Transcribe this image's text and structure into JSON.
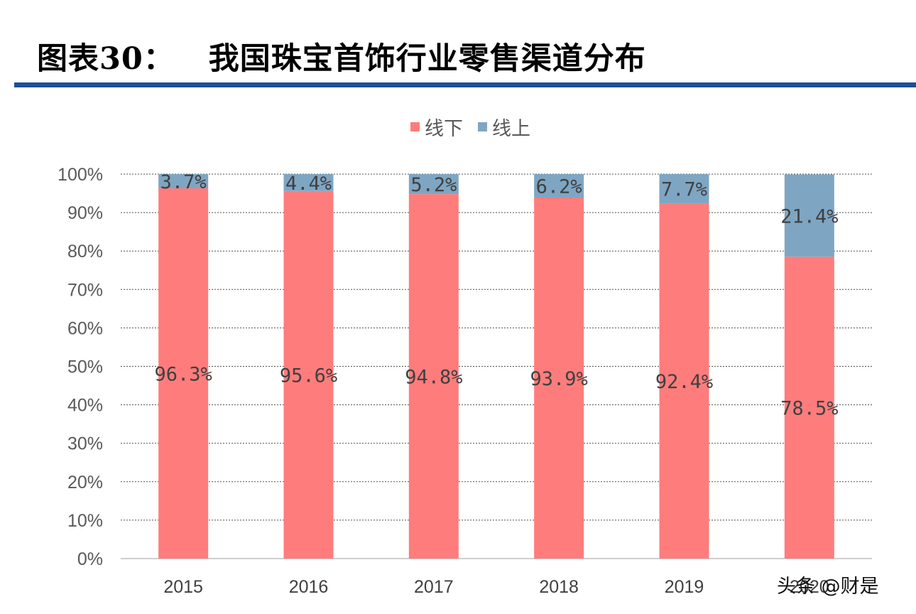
{
  "header": {
    "title": "图表30：   我国珠宝首饰行业零售渠道分布"
  },
  "watermark": "头条 @财是",
  "colors": {
    "offline": "#ff7c7c",
    "online": "#7ea6c3",
    "rule": "#1f4e95"
  },
  "chart_data": {
    "type": "bar",
    "stacked": true,
    "categories": [
      "2015",
      "2016",
      "2017",
      "2018",
      "2019",
      "2020"
    ],
    "series": [
      {
        "name": "线下",
        "values": [
          96.3,
          95.6,
          94.8,
          93.9,
          92.4,
          78.5
        ],
        "labels": [
          "96.3%",
          "95.6%",
          "94.8%",
          "93.9%",
          "92.4%",
          "78.5%"
        ]
      },
      {
        "name": "线上",
        "values": [
          3.7,
          4.4,
          5.2,
          6.2,
          7.7,
          21.4
        ],
        "labels": [
          "3.7%",
          "4.4%",
          "5.2%",
          "6.2%",
          "7.7%",
          "21.4%"
        ]
      }
    ],
    "y_ticks": [
      "0%",
      "10%",
      "20%",
      "30%",
      "40%",
      "50%",
      "60%",
      "70%",
      "80%",
      "90%",
      "100%"
    ],
    "ylim": [
      0,
      100
    ],
    "grid": true,
    "legend": "top-center"
  }
}
